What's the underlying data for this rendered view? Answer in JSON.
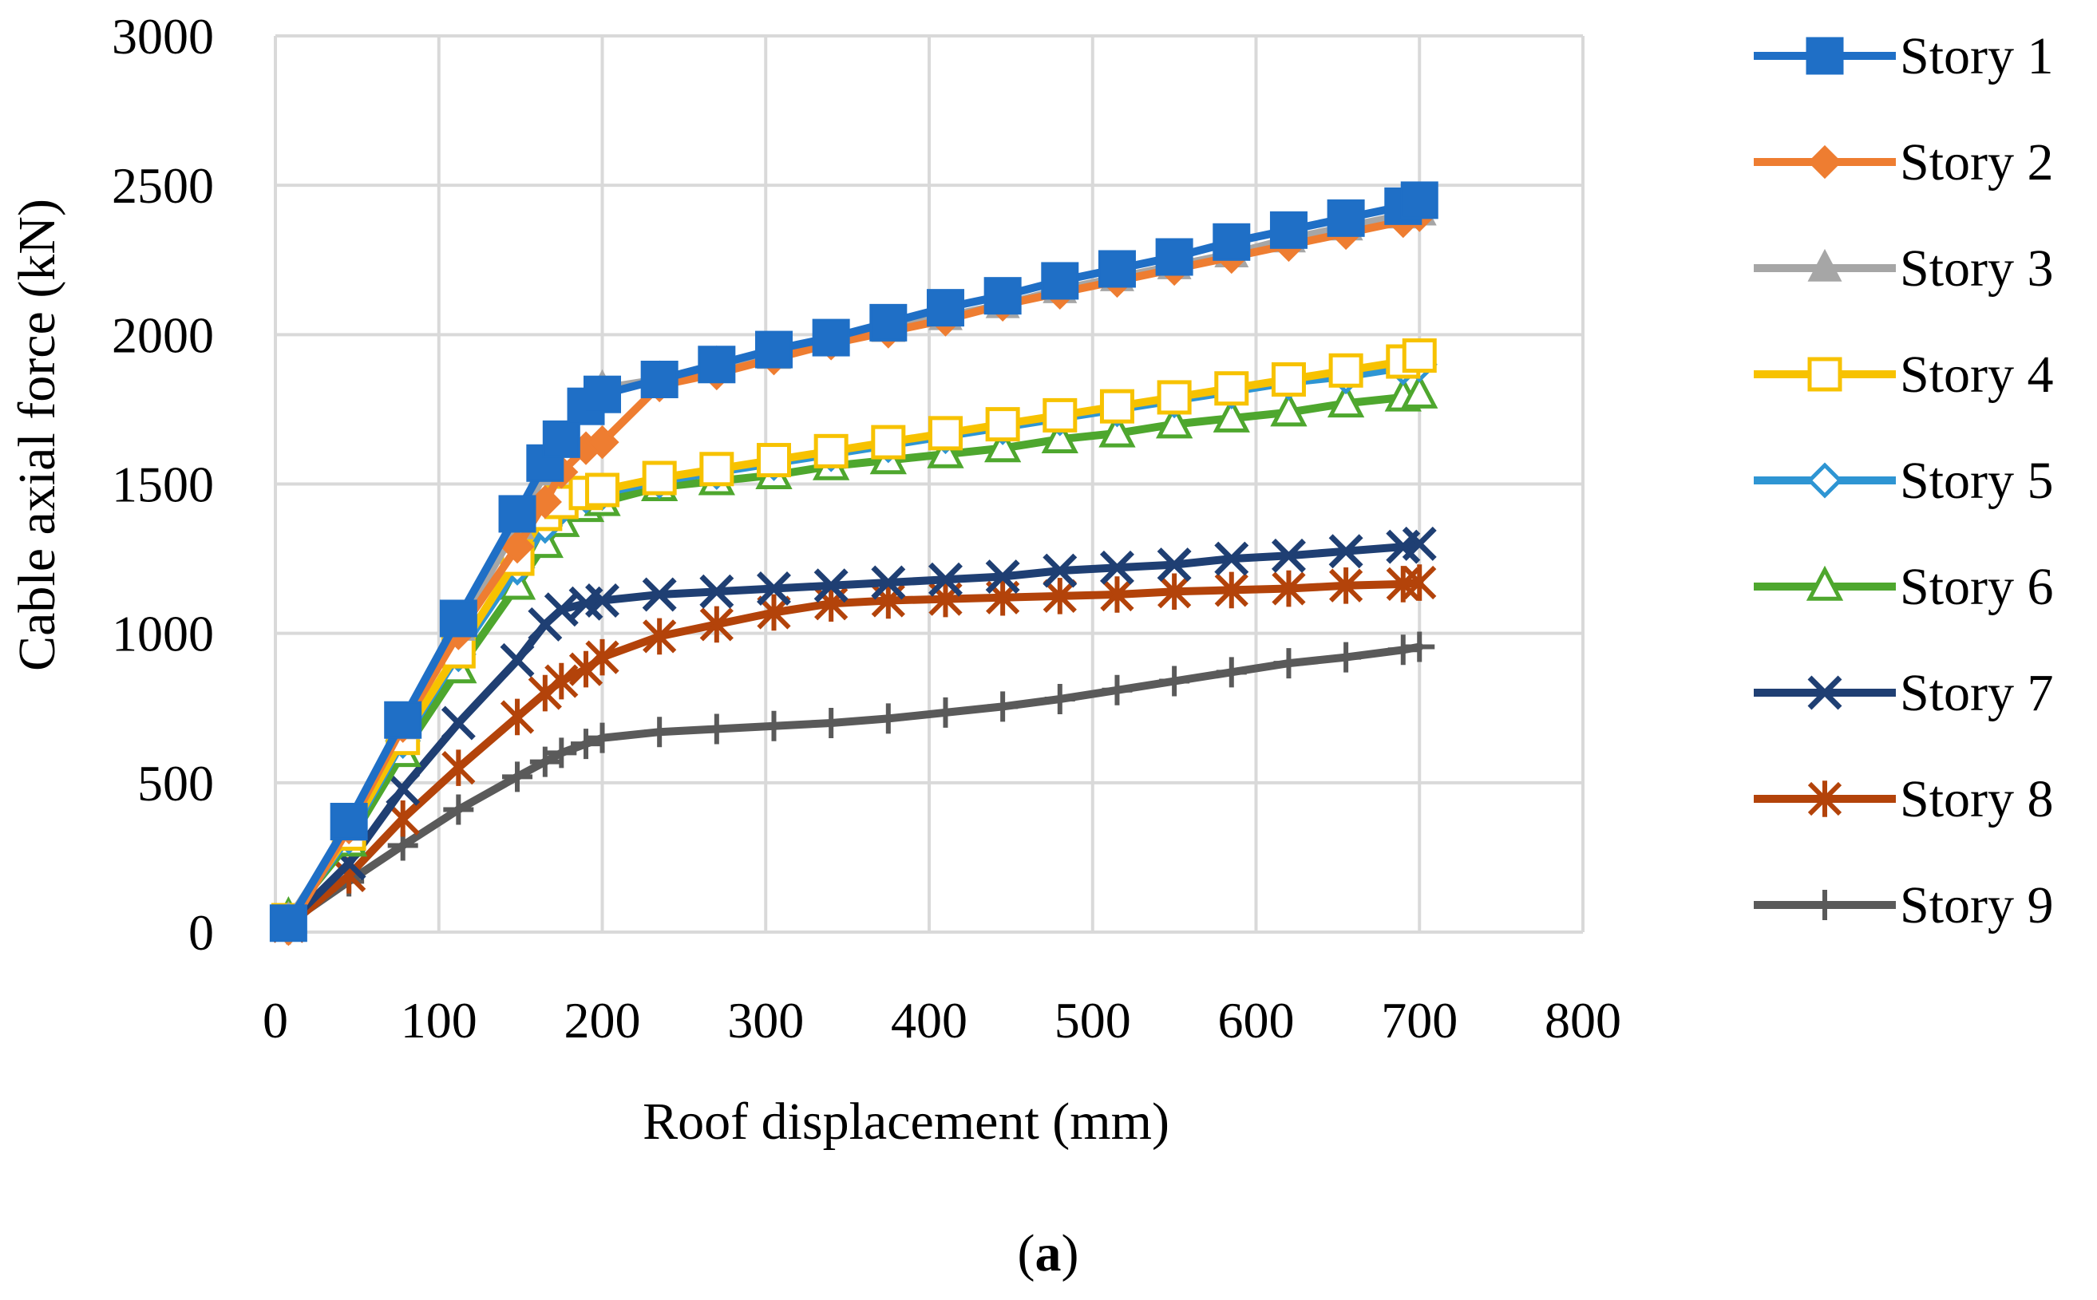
{
  "chart_data": {
    "type": "line",
    "title": "",
    "caption_paren_open": "(",
    "caption_letter": "a",
    "caption_paren_close": ")",
    "xlabel": "Roof displacement (mm)",
    "ylabel": "Cable axial force (kN)",
    "xlim": [
      0,
      800
    ],
    "ylim": [
      0,
      3000
    ],
    "xticks": [
      "0",
      "100",
      "200",
      "300",
      "400",
      "500",
      "600",
      "700",
      "800"
    ],
    "yticks": [
      "0",
      "500",
      "1000",
      "1500",
      "2000",
      "2500",
      "3000"
    ],
    "grid": true,
    "legend_position": "right",
    "x": [
      8,
      45,
      78,
      112,
      148,
      165,
      175,
      190,
      200,
      235,
      270,
      305,
      340,
      375,
      410,
      445,
      480,
      515,
      550,
      585,
      620,
      655,
      690,
      700
    ],
    "series": [
      {
        "name": "Story 9",
        "color": "#5a5a5a",
        "marker": "plus",
        "values": [
          30,
          170,
          290,
          410,
          520,
          570,
          600,
          630,
          650,
          670,
          680,
          690,
          700,
          715,
          735,
          755,
          780,
          810,
          840,
          870,
          900,
          920,
          945,
          955
        ]
      },
      {
        "name": "Story 8",
        "color": "#b3430a",
        "marker": "asterisk",
        "values": [
          20,
          190,
          380,
          550,
          720,
          800,
          840,
          880,
          920,
          990,
          1030,
          1070,
          1100,
          1110,
          1115,
          1120,
          1125,
          1130,
          1140,
          1145,
          1150,
          1160,
          1165,
          1170
        ]
      },
      {
        "name": "Story 7",
        "color": "#1f3f73",
        "marker": "x",
        "values": [
          30,
          230,
          480,
          700,
          910,
          1030,
          1080,
          1100,
          1110,
          1130,
          1140,
          1150,
          1160,
          1170,
          1180,
          1190,
          1210,
          1220,
          1230,
          1250,
          1260,
          1275,
          1290,
          1300
        ]
      },
      {
        "name": "Story 6",
        "color": "#4ea72e",
        "marker": "triangle-open",
        "values": [
          50,
          300,
          600,
          880,
          1160,
          1300,
          1370,
          1420,
          1440,
          1490,
          1510,
          1530,
          1560,
          1580,
          1600,
          1620,
          1650,
          1670,
          1700,
          1720,
          1740,
          1770,
          1790,
          1800
        ]
      },
      {
        "name": "Story 5",
        "color": "#2e95d3",
        "marker": "diamond-open",
        "values": [
          40,
          320,
          640,
          930,
          1220,
          1360,
          1420,
          1460,
          1470,
          1510,
          1540,
          1570,
          1600,
          1630,
          1660,
          1690,
          1720,
          1750,
          1780,
          1810,
          1840,
          1860,
          1890,
          1900
        ]
      },
      {
        "name": "Story 4",
        "color": "#f7c200",
        "marker": "square-open",
        "values": [
          40,
          330,
          650,
          940,
          1250,
          1400,
          1440,
          1470,
          1480,
          1520,
          1550,
          1580,
          1610,
          1640,
          1670,
          1700,
          1730,
          1760,
          1790,
          1820,
          1850,
          1880,
          1910,
          1930
        ]
      },
      {
        "name": "Story 3",
        "color": "#a6a6a6",
        "marker": "triangle-filled",
        "values": [
          40,
          350,
          690,
          1020,
          1360,
          1540,
          1640,
          1760,
          1820,
          1850,
          1900,
          1930,
          1980,
          2020,
          2060,
          2100,
          2150,
          2190,
          2230,
          2270,
          2320,
          2360,
          2400,
          2410
        ]
      },
      {
        "name": "Story 2",
        "color": "#ee7d31",
        "marker": "diamond-filled",
        "values": [
          10,
          350,
          690,
          1000,
          1290,
          1440,
          1540,
          1620,
          1640,
          1830,
          1870,
          1920,
          1970,
          2010,
          2050,
          2100,
          2140,
          2180,
          2220,
          2260,
          2300,
          2340,
          2380,
          2400
        ]
      },
      {
        "name": "Story 1",
        "color": "#1f6fc6",
        "marker": "square-filled",
        "values": [
          30,
          370,
          710,
          1050,
          1400,
          1570,
          1650,
          1760,
          1800,
          1850,
          1900,
          1950,
          1990,
          2040,
          2090,
          2130,
          2180,
          2220,
          2260,
          2310,
          2350,
          2390,
          2430,
          2450
        ]
      }
    ]
  }
}
